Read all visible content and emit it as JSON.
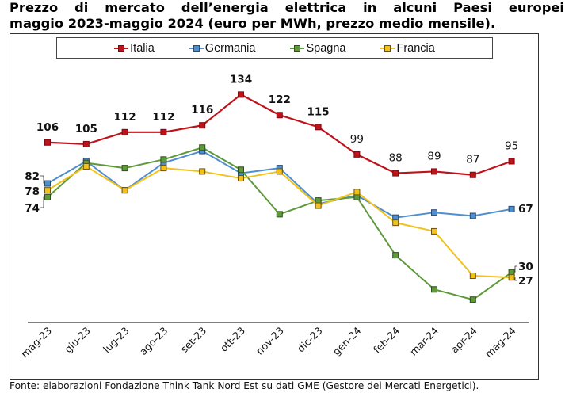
{
  "title": {
    "line1": "Prezzo di mercato dell’energia elettrica in alcuni Paesi europei",
    "line2": "maggio 2023-maggio 2024 (euro per MWh, prezzo medio mensile)."
  },
  "footer": "Fonte: elaborazioni Fondazione Think Tank Nord Est su dati GME (Gestore dei Mercati Energetici).",
  "chart_data": {
    "type": "line",
    "title": "Prezzo di mercato dell’energia elettrica in alcuni Paesi europei maggio 2023-maggio 2024 (euro per MWh, prezzo medio mensile).",
    "xlabel": "",
    "ylabel": "euro per MWh",
    "ylim": [
      0,
      140
    ],
    "grid": false,
    "legend": "top",
    "categories": [
      "mag-23",
      "giu-23",
      "lug-23",
      "ago-23",
      "set-23",
      "ott-23",
      "nov-23",
      "dic-23",
      "gen-24",
      "feb-24",
      "mar-24",
      "apr-24",
      "mag-24"
    ],
    "series": [
      {
        "name": "Italia",
        "color": "#c0121a",
        "values": [
          106,
          105,
          112,
          112,
          116,
          134,
          122,
          115,
          99,
          88,
          89,
          87,
          95
        ],
        "labels": [
          "106",
          "105",
          "112",
          "112",
          "116",
          "134",
          "122",
          "115",
          "99",
          "88",
          "89",
          "87",
          "95"
        ]
      },
      {
        "name": "Germania",
        "color": "#4f8fd0",
        "values": [
          82,
          95,
          78,
          94,
          101,
          88,
          91,
          70,
          75,
          62,
          65,
          63,
          67
        ],
        "labels": [
          "82",
          "",
          "",
          "",
          "",
          "",
          "",
          "",
          "",
          "",
          "",
          "",
          "67"
        ]
      },
      {
        "name": "Spagna",
        "color": "#5e9a3a",
        "values": [
          74,
          94,
          91,
          96,
          103,
          90,
          64,
          72,
          74,
          40,
          20,
          14,
          30
        ],
        "labels": [
          "74",
          "",
          "",
          "",
          "",
          "",
          "",
          "",
          "",
          "",
          "",
          "",
          "30"
        ]
      },
      {
        "name": "Francia",
        "color": "#f2c21a",
        "values": [
          78,
          92,
          78,
          91,
          89,
          85,
          89,
          69,
          77,
          59,
          54,
          28,
          27
        ],
        "labels": [
          "78",
          "",
          "",
          "",
          "",
          "",
          "",
          "",
          "",
          "",
          "",
          "",
          "27"
        ]
      }
    ]
  }
}
